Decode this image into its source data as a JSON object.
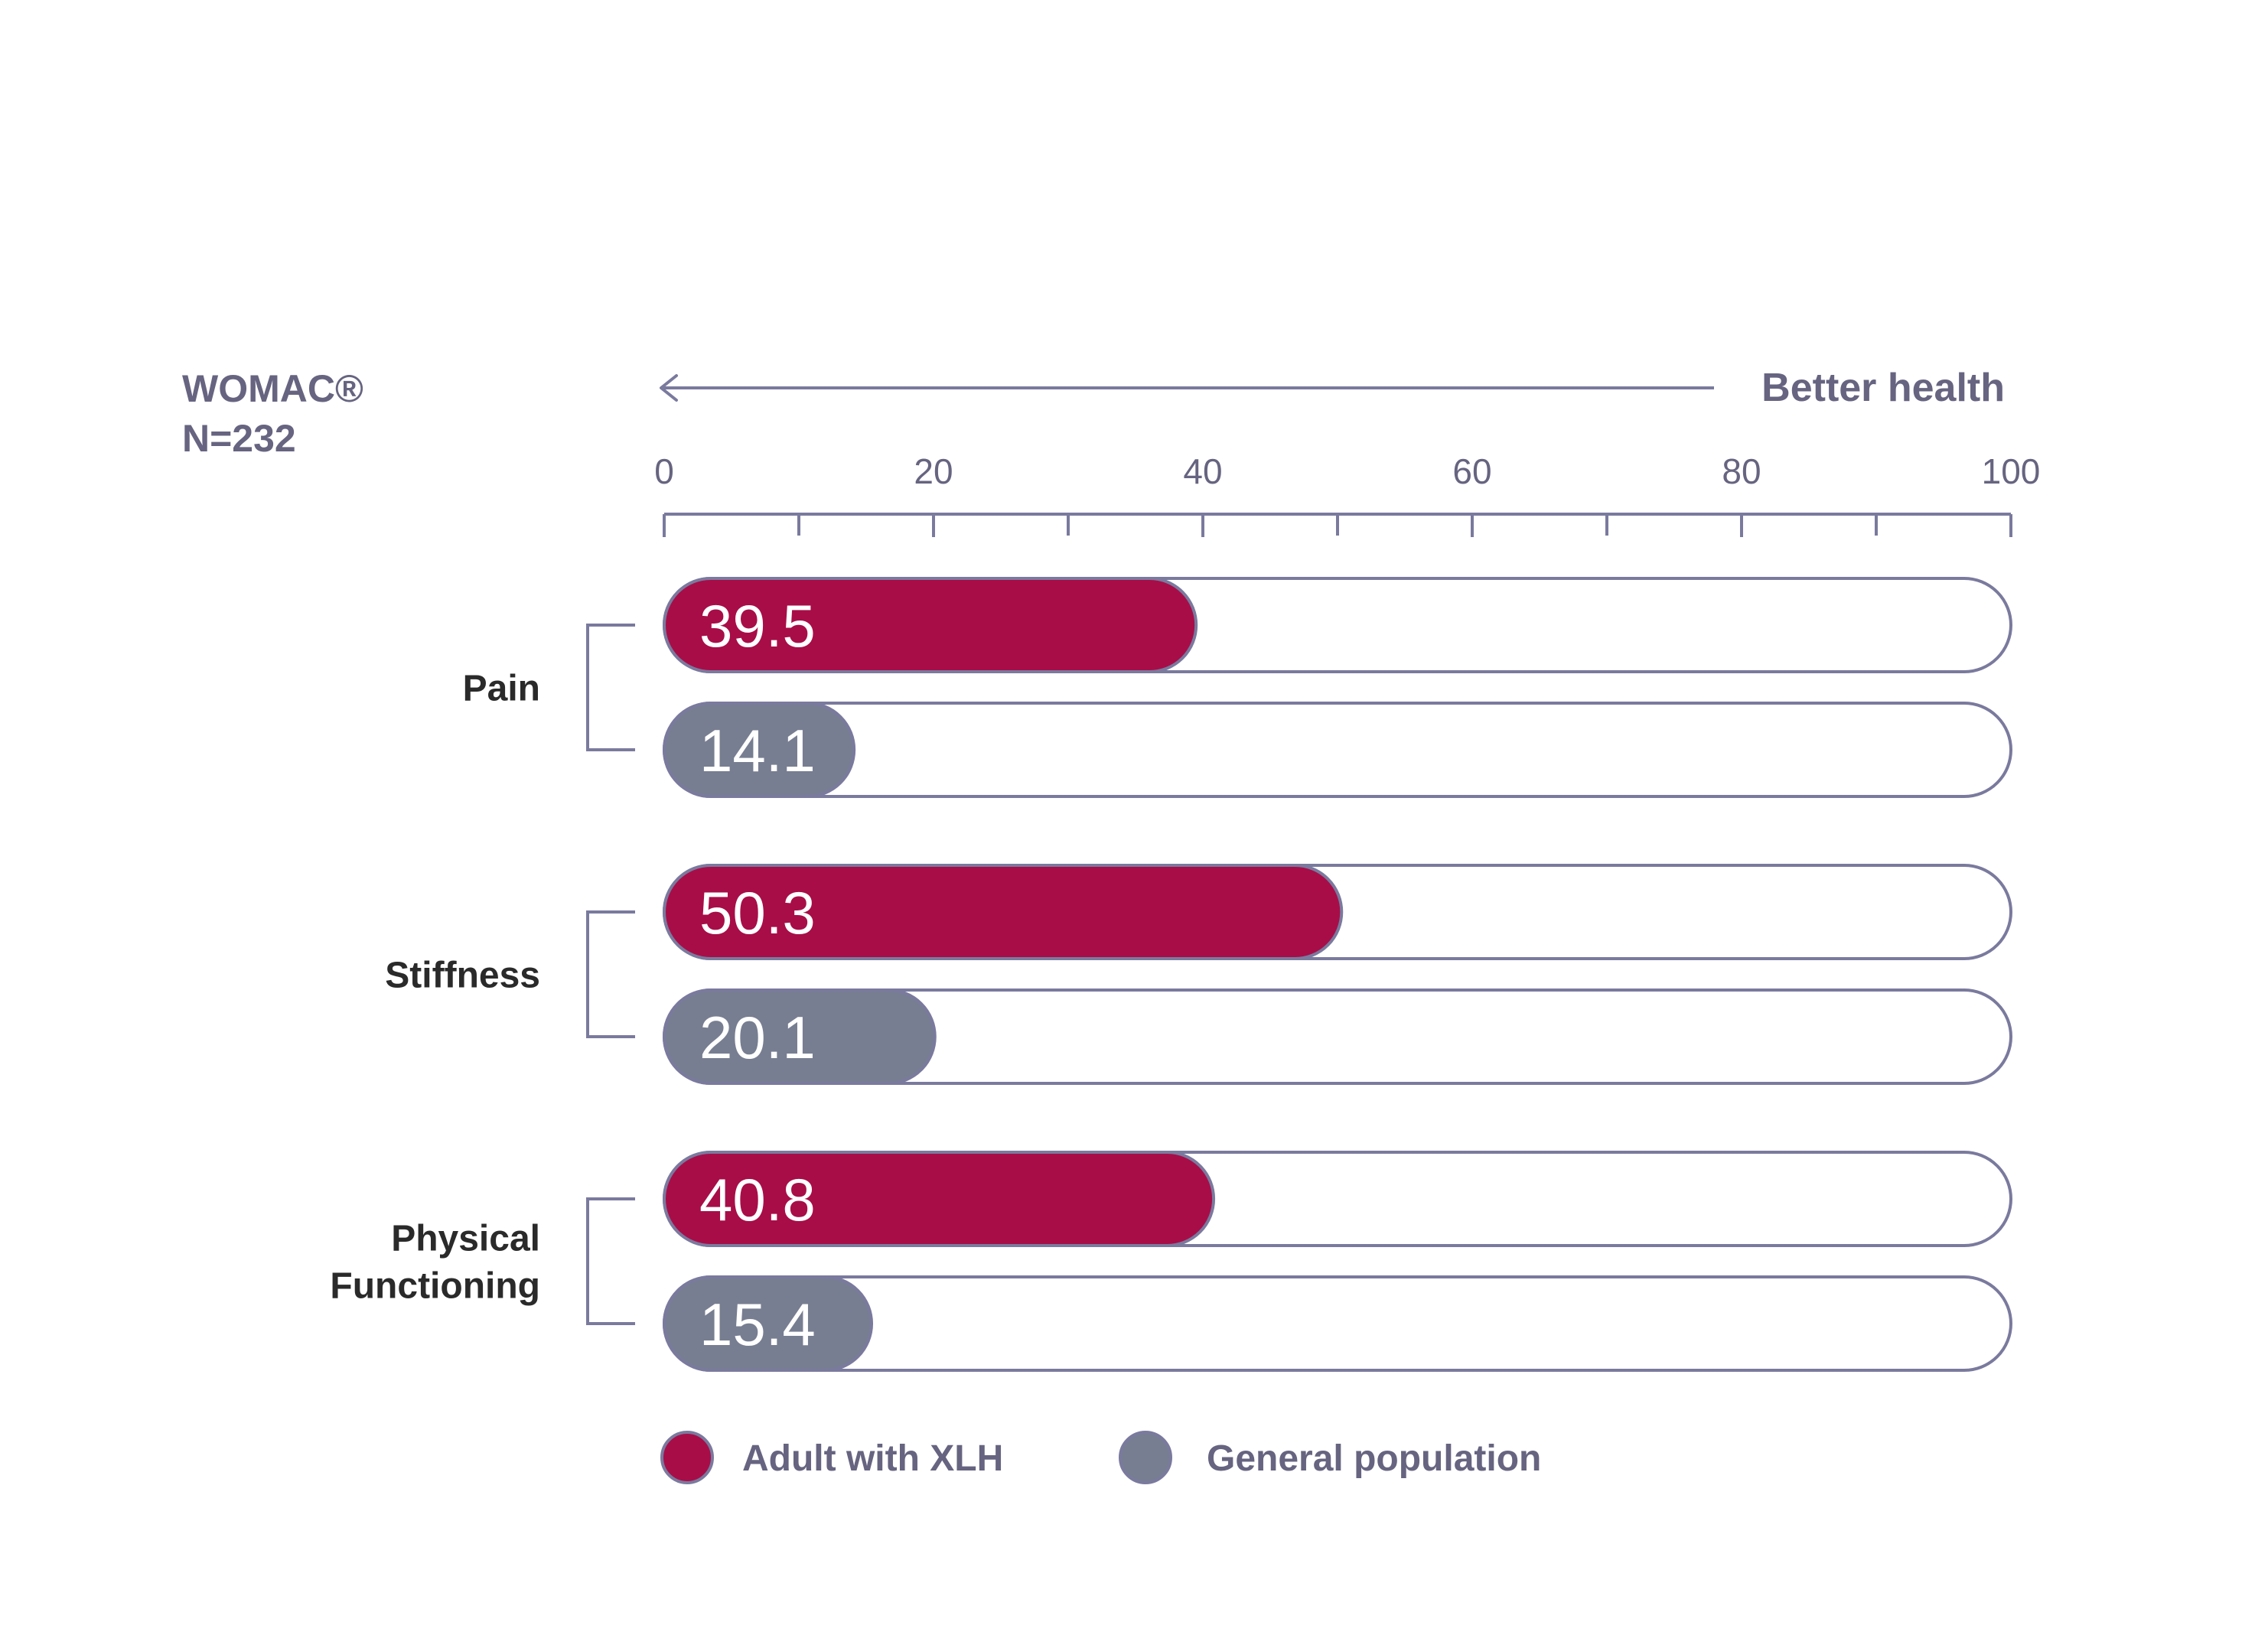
{
  "header": {
    "title_line1": "WOMAC®",
    "title_line2": "N=232",
    "direction_label": "Better health"
  },
  "colors": {
    "xlh": "#A80D48",
    "general": "#787E91",
    "outline": "#7A7A9E",
    "heading_text": "#666480",
    "category_text": "#2A2A2A",
    "value_text": "#FFFFFF"
  },
  "chart_data": {
    "type": "bar",
    "orientation": "horizontal",
    "categories": [
      [
        "Pain"
      ],
      [
        "Stiffness"
      ],
      [
        "Physical",
        "Functioning"
      ]
    ],
    "series": [
      {
        "name": "Adult with XLH",
        "values": [
          39.5,
          50.3,
          40.8
        ],
        "labels": [
          "39.5",
          "50.3",
          "40.8"
        ]
      },
      {
        "name": "General population",
        "values": [
          14.1,
          20.1,
          15.4
        ],
        "labels": [
          "14.1",
          "20.1",
          "15.4"
        ]
      }
    ],
    "xlim": [
      0,
      100
    ],
    "major_ticks": [
      0,
      20,
      40,
      60,
      80,
      100
    ],
    "tick_labels": [
      "0",
      "20",
      "40",
      "60",
      "80",
      "100"
    ],
    "minor_ticks": [
      10,
      30,
      50,
      70,
      90
    ],
    "axis_position": "top",
    "direction_arrow": "pointing-left",
    "legend_position": "bottom-left",
    "grid": false
  }
}
